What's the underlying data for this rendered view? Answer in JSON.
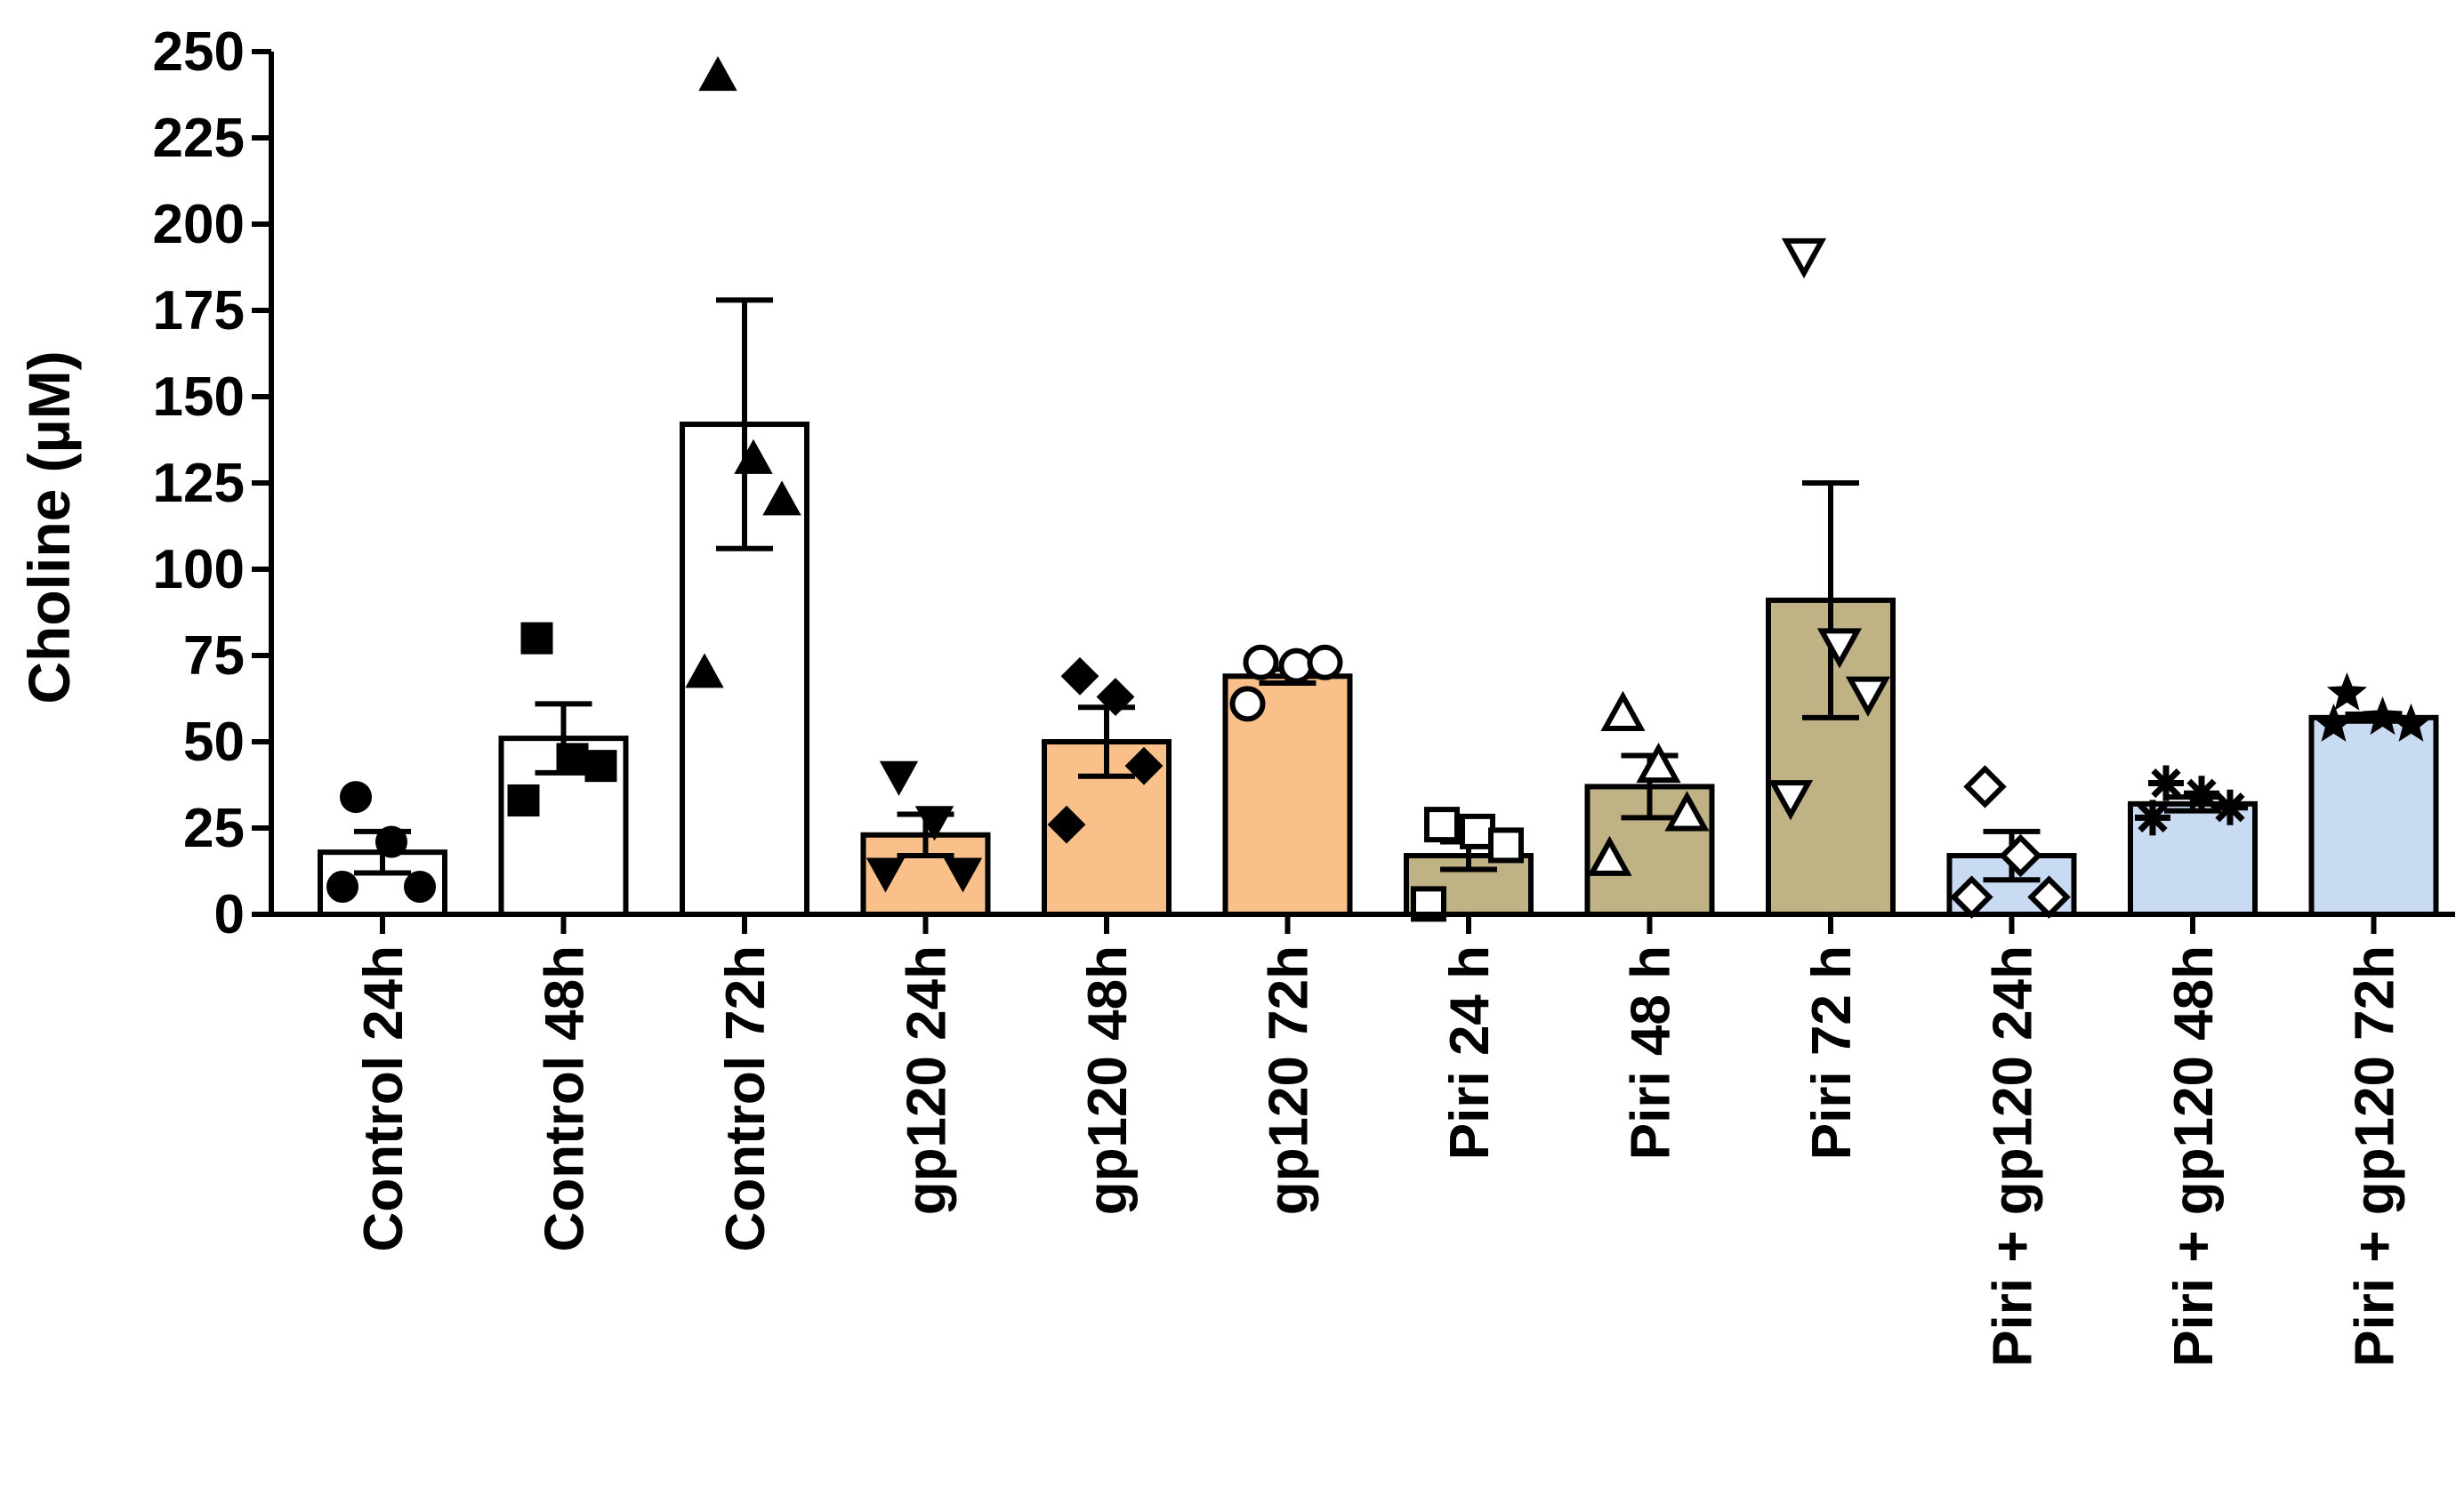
{
  "chart_data": {
    "type": "bar",
    "title": "",
    "xlabel": "",
    "ylabel": "Choline (µM)",
    "ylim": [
      0,
      250
    ],
    "yticks": [
      0,
      25,
      50,
      75,
      100,
      125,
      150,
      175,
      200,
      225,
      250
    ],
    "grid": false,
    "legend": "none",
    "categories": [
      "Control 24h",
      "Control 48h",
      "Control 72h",
      "gp120 24h",
      "gp120 48h",
      "gp120 72h",
      "Piri 24 h",
      "Piri 48 h",
      "Piri 72 h",
      "Piri + gp120 24h",
      "Piri + gp120 48h",
      "Piri + gp120 72h"
    ],
    "values": [
      18,
      51,
      142,
      23,
      50,
      69,
      17,
      37,
      91,
      17,
      32,
      57
    ],
    "sem": [
      6,
      10,
      36,
      6,
      10,
      2,
      4,
      9,
      34,
      7,
      2,
      1
    ],
    "bar_colors": [
      "#ffffff",
      "#ffffff",
      "#ffffff",
      "#f9c08a",
      "#f9c08a",
      "#f9c08a",
      "#bfb386",
      "#bfb386",
      "#bfb386",
      "#c9dbf3",
      "#c9dbf3",
      "#c9dbf3"
    ],
    "points": [
      {
        "marker": "circle-filled",
        "values": [
          34,
          21,
          8,
          8
        ]
      },
      {
        "marker": "square-filled",
        "values": [
          80,
          45,
          43,
          33
        ]
      },
      {
        "marker": "triangle-up-filled",
        "values": [
          243,
          132,
          120,
          70
        ]
      },
      {
        "marker": "triangle-down-filled",
        "values": [
          40,
          27,
          12,
          12
        ]
      },
      {
        "marker": "diamond-filled",
        "values": [
          69,
          63,
          43,
          26
        ]
      },
      {
        "marker": "circle-open",
        "values": [
          73,
          72,
          73,
          61
        ]
      },
      {
        "marker": "square-open",
        "values": [
          26,
          24,
          20,
          3
        ]
      },
      {
        "marker": "triangle-up-open",
        "values": [
          58,
          43,
          29,
          16
        ]
      },
      {
        "marker": "triangle-down-open",
        "values": [
          191,
          78,
          64,
          34
        ]
      },
      {
        "marker": "diamond-open",
        "values": [
          37,
          17,
          5,
          5
        ]
      },
      {
        "marker": "asterisk",
        "values": [
          38,
          35,
          31,
          28
        ]
      },
      {
        "marker": "star-filled",
        "values": [
          64,
          57,
          55,
          55
        ]
      }
    ]
  }
}
